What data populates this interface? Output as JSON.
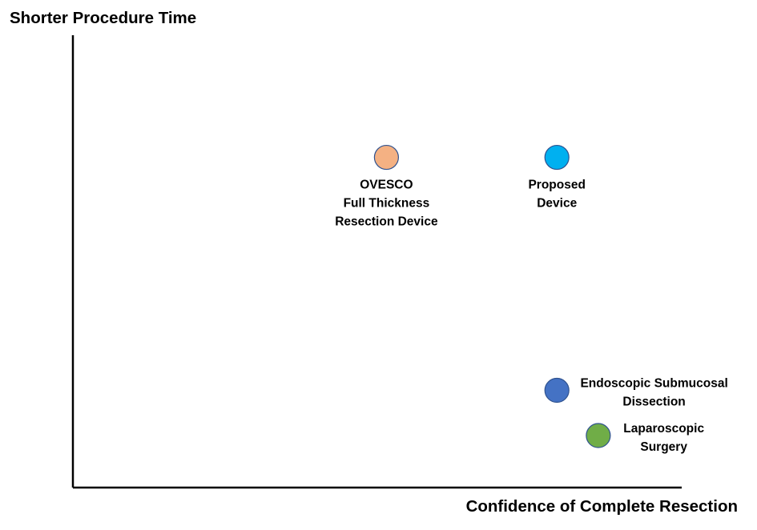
{
  "chart_data": {
    "type": "scatter",
    "xlabel": "Confidence of Complete Resection",
    "ylabel": "Shorter Procedure Time",
    "xlim": [
      0,
      100
    ],
    "ylim": [
      0,
      100
    ],
    "grid": false,
    "legend": "none",
    "points": [
      {
        "name": "OVESCO Full Thickness Resection Device",
        "label_lines": [
          "OVESCO",
          "Full Thickness",
          "Resection Device"
        ],
        "x": 51.5,
        "y": 73,
        "color": "#F4B183",
        "label_position": "below"
      },
      {
        "name": "Proposed Device",
        "label_lines": [
          "Proposed",
          "Device"
        ],
        "x": 79.5,
        "y": 73,
        "color": "#00B0F0",
        "label_position": "below"
      },
      {
        "name": "Endoscopic Submucosal Dissection",
        "label_lines": [
          "Endoscopic Submucosal",
          "Dissection"
        ],
        "x": 79.5,
        "y": 21.5,
        "color": "#4472C4",
        "label_position": "right"
      },
      {
        "name": "Laparoscopic Surgery",
        "label_lines": [
          "Laparoscopic",
          "Surgery"
        ],
        "x": 86.3,
        "y": 11.5,
        "color": "#70AD47",
        "label_position": "right"
      }
    ]
  }
}
